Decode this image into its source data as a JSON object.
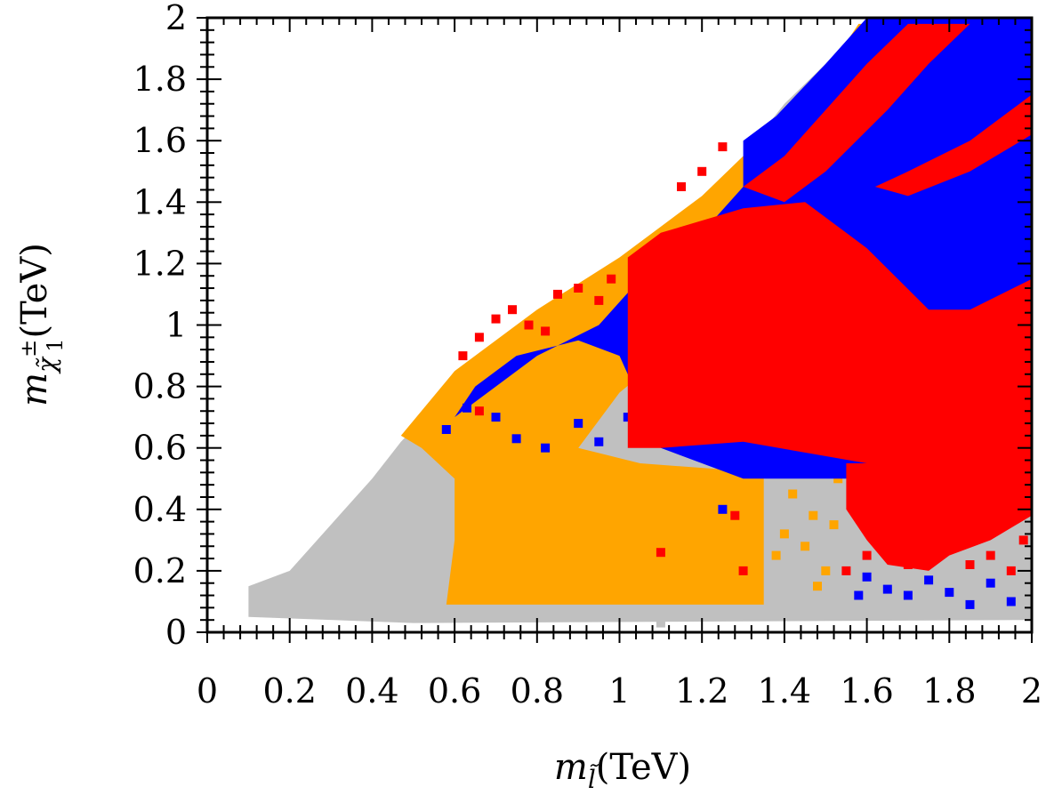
{
  "chart_data": {
    "type": "scatter",
    "title": "",
    "xlabel": "m_l̃(TeV)",
    "ylabel": "m_χ̃±1(TeV)",
    "xlim": [
      0,
      2
    ],
    "ylim": [
      0,
      2
    ],
    "x_ticks": [
      "0",
      "0.2",
      "0.4",
      "0.6",
      "0.8",
      "1",
      "1.2",
      "1.4",
      "1.6",
      "1.8",
      "2"
    ],
    "y_ticks": [
      "0",
      "0.2",
      "0.4",
      "0.6",
      "0.8",
      "1",
      "1.2",
      "1.4",
      "1.6",
      "1.8",
      "2"
    ],
    "grid": false,
    "legend": "none",
    "series": [
      {
        "color": "#c0c0c0",
        "regions": [
          [
            [
              0.1,
              0.05
            ],
            [
              0.1,
              0.15
            ],
            [
              0.2,
              0.2
            ],
            [
              0.3,
              0.35
            ],
            [
              0.4,
              0.5
            ],
            [
              0.47,
              0.62
            ],
            [
              0.6,
              0.8
            ],
            [
              0.8,
              1.0
            ],
            [
              0.95,
              1.15
            ],
            [
              1.1,
              1.25
            ],
            [
              1.2,
              1.38
            ],
            [
              1.3,
              1.55
            ],
            [
              1.4,
              1.72
            ],
            [
              1.5,
              1.85
            ],
            [
              1.6,
              1.98
            ],
            [
              2.0,
              2.0
            ],
            [
              2.0,
              0.04
            ],
            [
              0.5,
              0.03
            ]
          ]
        ],
        "points": [
          [
            1.93,
            0.22
          ],
          [
            1.96,
            0.28
          ],
          [
            1.1,
            0.03
          ],
          [
            1.6,
            0.06
          ],
          [
            1.85,
            0.09
          ]
        ]
      },
      {
        "color": "#ffa500",
        "regions": [
          [
            [
              0.58,
              0.09
            ],
            [
              0.6,
              0.3
            ],
            [
              0.6,
              0.5
            ],
            [
              0.52,
              0.6
            ],
            [
              0.47,
              0.64
            ],
            [
              0.6,
              0.85
            ],
            [
              0.8,
              1.05
            ],
            [
              1.0,
              1.22
            ],
            [
              1.2,
              1.42
            ],
            [
              1.3,
              1.55
            ],
            [
              1.4,
              1.7
            ],
            [
              1.5,
              1.82
            ],
            [
              1.58,
              1.98
            ],
            [
              1.7,
              1.98
            ],
            [
              1.7,
              1.5
            ],
            [
              1.45,
              1.3
            ],
            [
              1.3,
              1.15
            ],
            [
              1.2,
              1.0
            ],
            [
              1.0,
              0.78
            ],
            [
              0.9,
              0.6
            ],
            [
              1.05,
              0.55
            ],
            [
              1.35,
              0.52
            ],
            [
              1.35,
              0.09
            ]
          ]
        ],
        "points": [
          [
            1.4,
            0.32
          ],
          [
            1.45,
            0.28
          ],
          [
            1.47,
            0.38
          ],
          [
            1.5,
            0.2
          ],
          [
            1.42,
            0.45
          ],
          [
            1.52,
            0.35
          ],
          [
            1.38,
            0.25
          ],
          [
            1.48,
            0.15
          ],
          [
            1.53,
            0.5
          ],
          [
            1.95,
            0.6
          ],
          [
            1.98,
            1.42
          ],
          [
            1.65,
            1.4
          ],
          [
            1.75,
            1.35
          ]
        ]
      },
      {
        "color": "#0000ff",
        "regions": [
          [
            [
              0.6,
              0.7
            ],
            [
              0.65,
              0.8
            ],
            [
              0.75,
              0.9
            ],
            [
              0.9,
              0.95
            ],
            [
              1.0,
              0.9
            ],
            [
              1.05,
              0.75
            ],
            [
              1.1,
              0.6
            ],
            [
              1.3,
              0.5
            ],
            [
              1.6,
              0.5
            ],
            [
              2.0,
              0.5
            ],
            [
              2.0,
              2.0
            ],
            [
              1.6,
              2.0
            ],
            [
              1.5,
              1.85
            ],
            [
              1.38,
              1.68
            ],
            [
              1.3,
              1.6
            ],
            [
              1.3,
              1.45
            ],
            [
              1.2,
              1.3
            ],
            [
              1.05,
              1.15
            ],
            [
              0.95,
              1.0
            ],
            [
              0.8,
              0.9
            ],
            [
              0.7,
              0.8
            ]
          ]
        ],
        "points": [
          [
            0.58,
            0.66
          ],
          [
            0.63,
            0.73
          ],
          [
            0.7,
            0.7
          ],
          [
            0.75,
            0.63
          ],
          [
            0.82,
            0.6
          ],
          [
            0.9,
            0.68
          ],
          [
            0.95,
            0.62
          ],
          [
            1.02,
            0.7
          ],
          [
            1.25,
            0.4
          ],
          [
            1.6,
            0.18
          ],
          [
            1.65,
            0.14
          ],
          [
            1.7,
            0.12
          ],
          [
            1.75,
            0.17
          ],
          [
            1.8,
            0.13
          ],
          [
            1.9,
            0.16
          ],
          [
            1.95,
            0.1
          ],
          [
            1.58,
            0.12
          ],
          [
            1.85,
            0.09
          ]
        ]
      },
      {
        "color": "#ff0000",
        "regions": [
          [
            [
              1.02,
              0.6
            ],
            [
              1.02,
              1.22
            ],
            [
              1.1,
              1.3
            ],
            [
              1.3,
              1.38
            ],
            [
              1.45,
              1.4
            ],
            [
              1.55,
              1.3
            ],
            [
              1.6,
              1.25
            ],
            [
              1.75,
              1.05
            ],
            [
              1.85,
              1.05
            ],
            [
              2.0,
              1.15
            ],
            [
              2.0,
              0.55
            ],
            [
              1.6,
              0.55
            ],
            [
              1.3,
              0.62
            ],
            [
              1.1,
              0.6
            ]
          ],
          [
            [
              1.3,
              1.45
            ],
            [
              1.4,
              1.55
            ],
            [
              1.5,
              1.7
            ],
            [
              1.6,
              1.85
            ],
            [
              1.7,
              1.98
            ],
            [
              1.85,
              1.98
            ],
            [
              1.75,
              1.85
            ],
            [
              1.65,
              1.7
            ],
            [
              1.5,
              1.5
            ],
            [
              1.4,
              1.4
            ]
          ],
          [
            [
              1.62,
              1.45
            ],
            [
              1.7,
              1.5
            ],
            [
              1.85,
              1.6
            ],
            [
              2.0,
              1.75
            ],
            [
              2.0,
              1.62
            ],
            [
              1.85,
              1.5
            ],
            [
              1.7,
              1.42
            ]
          ],
          [
            [
              1.55,
              0.55
            ],
            [
              1.55,
              0.4
            ],
            [
              1.6,
              0.3
            ],
            [
              1.65,
              0.22
            ],
            [
              1.75,
              0.2
            ],
            [
              1.8,
              0.25
            ],
            [
              1.9,
              0.3
            ],
            [
              2.0,
              0.38
            ],
            [
              2.0,
              0.55
            ]
          ]
        ],
        "points": [
          [
            0.62,
            0.9
          ],
          [
            0.66,
            0.96
          ],
          [
            0.7,
            1.02
          ],
          [
            0.74,
            1.05
          ],
          [
            0.78,
            1.0
          ],
          [
            0.82,
            0.98
          ],
          [
            0.85,
            1.1
          ],
          [
            0.9,
            1.12
          ],
          [
            0.95,
            1.08
          ],
          [
            0.98,
            1.15
          ],
          [
            0.66,
            0.72
          ],
          [
            1.1,
            0.26
          ],
          [
            1.28,
            0.38
          ],
          [
            1.3,
            0.2
          ],
          [
            1.55,
            0.2
          ],
          [
            1.6,
            0.25
          ],
          [
            1.7,
            0.22
          ],
          [
            1.8,
            0.28
          ],
          [
            1.85,
            0.22
          ],
          [
            1.9,
            0.25
          ],
          [
            1.95,
            0.2
          ],
          [
            1.98,
            0.3
          ],
          [
            1.25,
            1.58
          ],
          [
            1.2,
            1.5
          ],
          [
            1.15,
            1.45
          ]
        ]
      }
    ]
  }
}
